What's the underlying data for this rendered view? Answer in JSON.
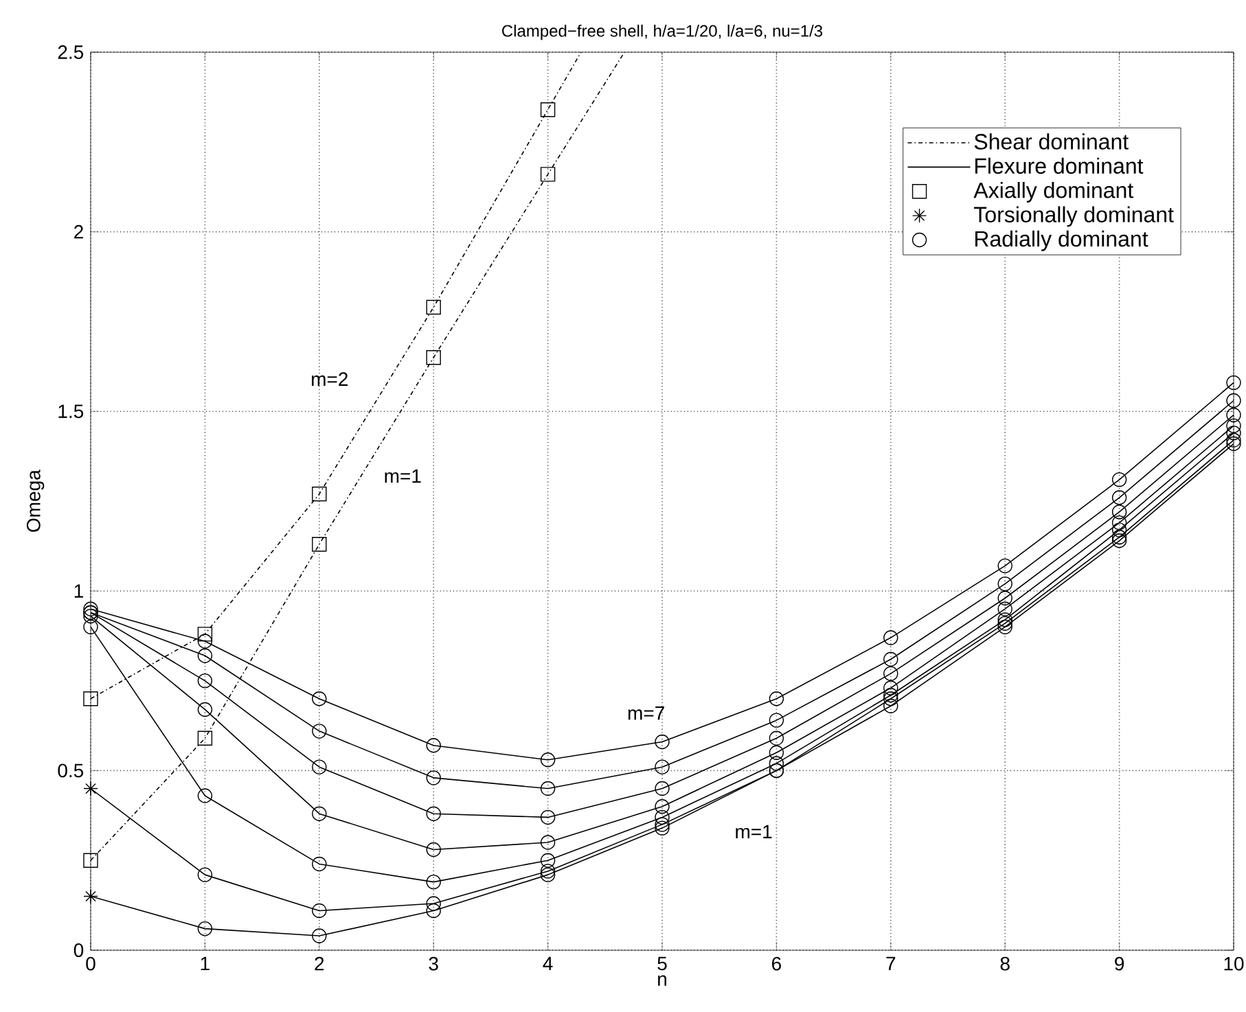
{
  "chart_data": {
    "type": "line",
    "title": "Clamped−free shell, h/a=1/20, l/a=6, nu=1/3",
    "xlabel": "n",
    "ylabel": "Omega",
    "x": [
      0,
      1,
      2,
      3,
      4,
      5,
      6,
      7,
      8,
      9,
      10
    ],
    "xlim": [
      0,
      10
    ],
    "xticks": [
      0,
      1,
      2,
      3,
      4,
      5,
      6,
      7,
      8,
      9,
      10
    ],
    "ylim": [
      0,
      2.5
    ],
    "yticks": [
      0,
      0.5,
      1,
      1.5,
      2,
      2.5
    ],
    "grid": true,
    "legend": "top right",
    "series": [
      {
        "name": "Shear dominant",
        "line_style": "dashdot",
        "color": "#000000",
        "x": [
          0,
          1,
          2,
          3,
          4,
          4.29
        ],
        "values": [
          0.7,
          0.88,
          1.27,
          1.79,
          2.34,
          2.5
        ]
      },
      {
        "line_style": "dashdot",
        "color": "#000000",
        "x": [
          0,
          1,
          2,
          3,
          4,
          4.67
        ],
        "values": [
          0.25,
          0.59,
          1.13,
          1.65,
          2.16,
          2.5
        ]
      },
      {
        "name": "Flexure dominant",
        "line_style": "solid",
        "color": "#000000",
        "values": [
          0.95,
          0.86,
          0.7,
          0.57,
          0.53,
          0.58,
          0.7,
          0.87,
          1.07,
          1.31,
          1.58
        ]
      },
      {
        "line_style": "solid",
        "color": "#000000",
        "values": [
          0.94,
          0.82,
          0.61,
          0.48,
          0.45,
          0.51,
          0.64,
          0.81,
          1.02,
          1.26,
          1.53
        ]
      },
      {
        "line_style": "solid",
        "color": "#000000",
        "values": [
          0.94,
          0.75,
          0.51,
          0.38,
          0.37,
          0.45,
          0.59,
          0.77,
          0.98,
          1.22,
          1.49
        ]
      },
      {
        "line_style": "solid",
        "color": "#000000",
        "values": [
          0.93,
          0.67,
          0.38,
          0.28,
          0.3,
          0.4,
          0.55,
          0.73,
          0.95,
          1.19,
          1.46
        ]
      },
      {
        "line_style": "solid",
        "color": "#000000",
        "values": [
          0.9,
          0.43,
          0.24,
          0.19,
          0.25,
          0.37,
          0.52,
          0.71,
          0.92,
          1.17,
          1.44
        ]
      },
      {
        "line_style": "solid",
        "color": "#000000",
        "values": [
          0.45,
          0.21,
          0.11,
          0.13,
          0.22,
          0.35,
          0.5,
          0.7,
          0.91,
          1.15,
          1.42
        ]
      },
      {
        "line_style": "solid",
        "color": "#000000",
        "values": [
          0.15,
          0.06,
          0.04,
          0.11,
          0.21,
          0.34,
          0.5,
          0.68,
          0.9,
          1.14,
          1.41
        ]
      },
      {
        "name": "Axially dominant",
        "type": "scatter",
        "marker": "square",
        "color": "#000000",
        "x": [
          0,
          1,
          2,
          3,
          4,
          0,
          1,
          2,
          3,
          4
        ],
        "values": [
          0.7,
          0.88,
          1.27,
          1.79,
          2.34,
          0.25,
          0.59,
          1.13,
          1.65,
          2.16
        ]
      },
      {
        "name": "Torsionally dominant",
        "type": "scatter",
        "marker": "cross",
        "color": "#000000",
        "x": [
          0,
          0
        ],
        "values": [
          0.45,
          0.15
        ]
      },
      {
        "name": "Radially dominant",
        "type": "scatter",
        "marker": "circle",
        "color": "#000000",
        "x": [
          0,
          0,
          0,
          0,
          0,
          1,
          1,
          1,
          1,
          1,
          1,
          1,
          2,
          2,
          2,
          2,
          2,
          2,
          2,
          3,
          3,
          3,
          3,
          3,
          3,
          3,
          4,
          4,
          4,
          4,
          4,
          4,
          4,
          5,
          5,
          5,
          5,
          5,
          5,
          5,
          6,
          6,
          6,
          6,
          6,
          6,
          6,
          7,
          7,
          7,
          7,
          7,
          7,
          7,
          8,
          8,
          8,
          8,
          8,
          8,
          8,
          9,
          9,
          9,
          9,
          9,
          9,
          9,
          10,
          10,
          10,
          10,
          10,
          10,
          10
        ],
        "values": [
          0.95,
          0.94,
          0.94,
          0.93,
          0.9,
          0.86,
          0.82,
          0.75,
          0.67,
          0.43,
          0.21,
          0.06,
          0.7,
          0.61,
          0.51,
          0.38,
          0.24,
          0.11,
          0.04,
          0.57,
          0.48,
          0.38,
          0.28,
          0.19,
          0.13,
          0.11,
          0.53,
          0.45,
          0.37,
          0.3,
          0.25,
          0.22,
          0.21,
          0.58,
          0.51,
          0.45,
          0.4,
          0.37,
          0.35,
          0.34,
          0.7,
          0.64,
          0.59,
          0.55,
          0.52,
          0.5,
          0.5,
          0.87,
          0.81,
          0.77,
          0.73,
          0.71,
          0.7,
          0.68,
          1.07,
          1.02,
          0.98,
          0.95,
          0.92,
          0.91,
          0.9,
          1.31,
          1.26,
          1.22,
          1.19,
          1.17,
          1.15,
          1.14,
          1.58,
          1.53,
          1.49,
          1.46,
          1.44,
          1.42,
          1.41
        ]
      }
    ],
    "annotations": [
      "m=2",
      "m=1",
      "m=7",
      "m=1"
    ]
  }
}
